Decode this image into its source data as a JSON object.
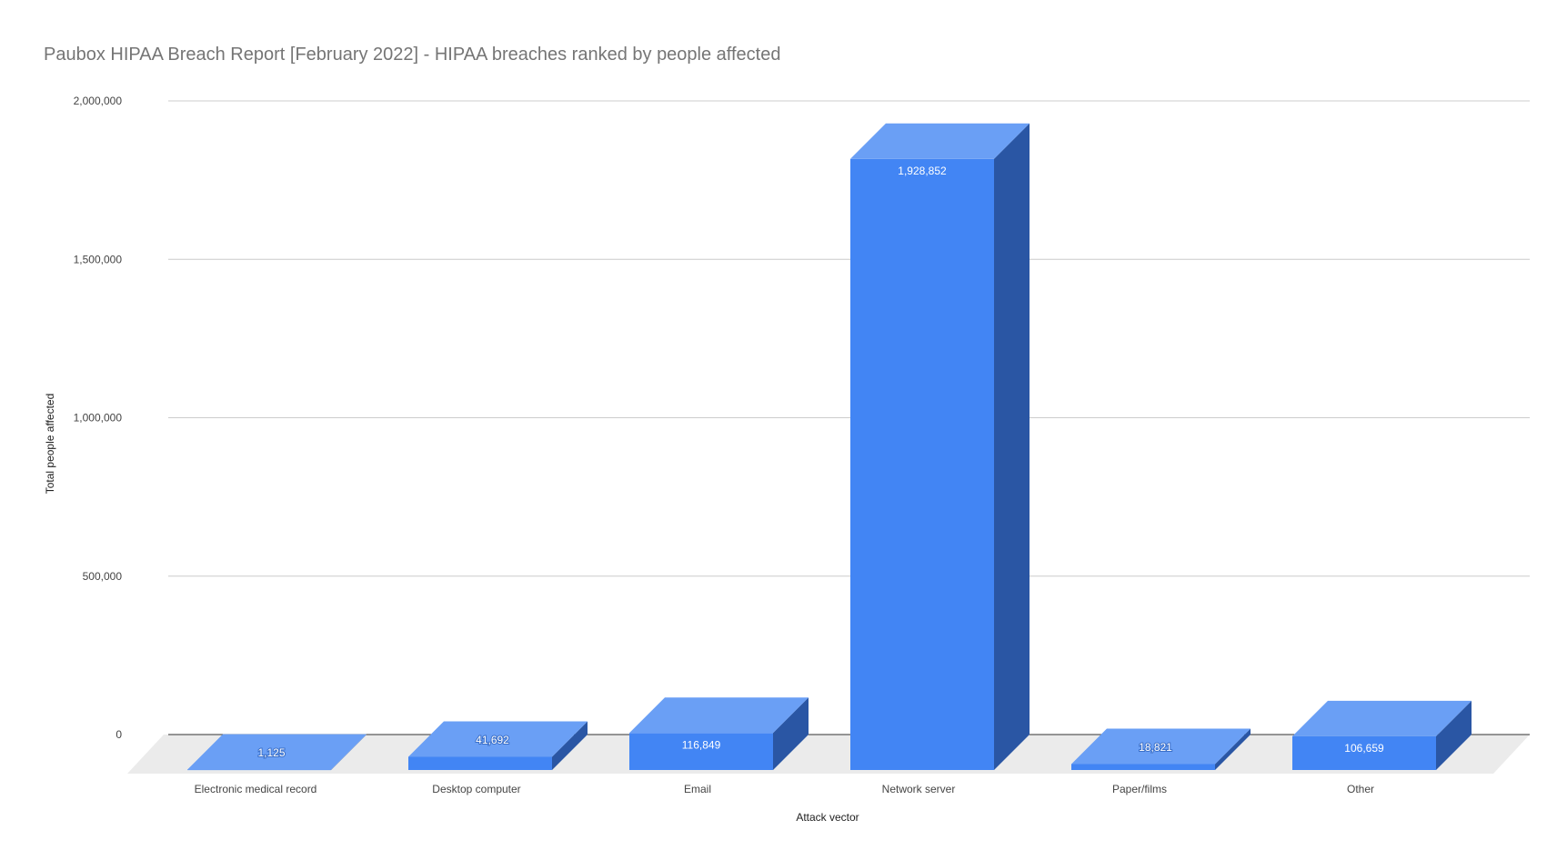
{
  "chart_data": {
    "type": "bar",
    "title": "Paubox HIPAA Breach Report [February 2022] - HIPAA breaches ranked by people affected",
    "xlabel": "Attack vector",
    "ylabel": "Total people affected",
    "categories": [
      "Electronic medical record",
      "Desktop computer",
      "Email",
      "Network server",
      "Paper/films",
      "Other"
    ],
    "values": [
      1125,
      41692,
      116849,
      1928852,
      18821,
      106659
    ],
    "value_labels": [
      "1,125",
      "41,692",
      "116,849",
      "1,928,852",
      "18,821",
      "106,659"
    ],
    "ylim": [
      0,
      2000000
    ],
    "yticks": [
      0,
      500000,
      1000000,
      1500000,
      2000000
    ],
    "ytick_labels": [
      "0",
      "500,000",
      "1,000,000",
      "1,500,000",
      "2,000,000"
    ],
    "grid": true,
    "legend": "none",
    "style": "3d",
    "colors": {
      "bar_front": "#4285f4",
      "bar_top": "#6a9ff5",
      "bar_side": "#2a56a4",
      "floor": "#ebebeb",
      "grid": "#cccccc",
      "baseline": "#333333"
    }
  }
}
